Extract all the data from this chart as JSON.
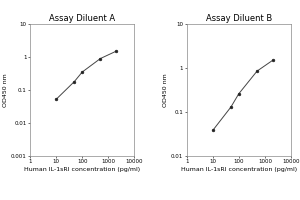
{
  "title_A": "Assay Diluent A",
  "title_B": "Assay Diluent B",
  "xlabel": "Human IL-1sRI concentration (pg/ml)",
  "ylabel": "OD450 nm",
  "x_data_A": [
    10,
    50,
    100,
    500,
    2000
  ],
  "y_data_A": [
    0.052,
    0.18,
    0.35,
    0.9,
    1.5
  ],
  "x_data_B": [
    10,
    50,
    100,
    500,
    2000
  ],
  "y_data_B": [
    0.038,
    0.13,
    0.26,
    0.85,
    1.5
  ],
  "xlim": [
    1,
    9000
  ],
  "ylim_A": [
    0.001,
    10
  ],
  "ylim_B": [
    0.01,
    6
  ],
  "xticks": [
    1,
    10,
    100,
    1000,
    10000
  ],
  "xtick_labels": [
    "1",
    "10",
    "100",
    "1000",
    "10000"
  ],
  "yticks_A": [
    0.001,
    0.01,
    0.1,
    1,
    10
  ],
  "ytick_labels_A": [
    "0.001",
    "0.01",
    "0.1",
    "1",
    "10"
  ],
  "yticks_B": [
    0.01,
    0.1,
    1,
    10
  ],
  "ytick_labels_B": [
    "0.01",
    "0.1",
    "1",
    "10"
  ],
  "line_color": "#444444",
  "marker_color": "#222222",
  "bg_color": "#ffffff",
  "fig_color": "#ffffff",
  "title_fontsize": 6,
  "label_fontsize": 4.5,
  "tick_fontsize": 4,
  "marker_size": 2,
  "line_width": 0.7
}
